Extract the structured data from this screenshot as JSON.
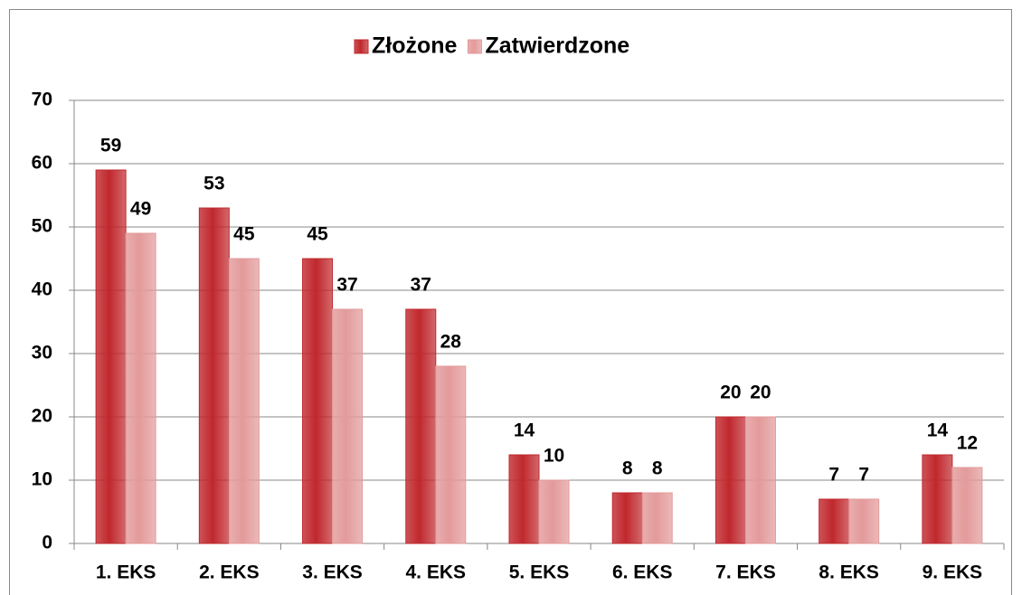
{
  "chart_data": {
    "type": "bar",
    "categories": [
      "1. EKS",
      "2. EKS",
      "3. EKS",
      "4. EKS",
      "5. EKS",
      "6. EKS",
      "7. EKS",
      "8. EKS",
      "9. EKS"
    ],
    "series": [
      {
        "name": "Złożone",
        "color": "#c0282d",
        "values": [
          59,
          53,
          45,
          37,
          14,
          8,
          20,
          7,
          14
        ]
      },
      {
        "name": "Zatwierdzone",
        "color": "#e39a9a",
        "values": [
          49,
          45,
          37,
          28,
          10,
          8,
          20,
          7,
          12
        ]
      }
    ],
    "ylim": [
      0,
      70
    ],
    "yticks": [
      0,
      10,
      20,
      30,
      40,
      50,
      60,
      70
    ],
    "grid": true,
    "legend": "top"
  }
}
